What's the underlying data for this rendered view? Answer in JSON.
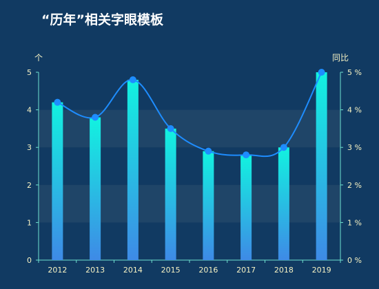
{
  "title": "“历年”相关字眼模板",
  "colors": {
    "background": "#113a62",
    "axis_text": "#f7f3c4",
    "bar_top": "#12f2e0",
    "bar_bottom": "#3e8ae6",
    "line": "#1e8dff",
    "band": "#1f4568",
    "axis_line": "#6fe3d0"
  },
  "chart_data": {
    "type": "bar",
    "categories": [
      "2012",
      "2013",
      "2014",
      "2015",
      "2016",
      "2017",
      "2018",
      "2019"
    ],
    "ylabel_left": "个",
    "ylabel_right": "同比",
    "ylim_left": [
      0,
      5
    ],
    "ylim_right": [
      0,
      5
    ],
    "yticks_left": [
      "0",
      "1",
      "2",
      "3",
      "4",
      "5"
    ],
    "yticks_right": [
      "0 %",
      "1 %",
      "2 %",
      "3 %",
      "4 %",
      "5 %"
    ],
    "grid": false,
    "series": [
      {
        "type": "bar",
        "values": [
          4.2,
          3.8,
          4.8,
          3.5,
          2.9,
          2.8,
          3.0,
          5.0
        ]
      },
      {
        "type": "line",
        "smooth": true,
        "axis": "right",
        "values": [
          4.2,
          3.8,
          4.8,
          3.5,
          2.9,
          2.8,
          3.0,
          5.0
        ]
      }
    ]
  }
}
